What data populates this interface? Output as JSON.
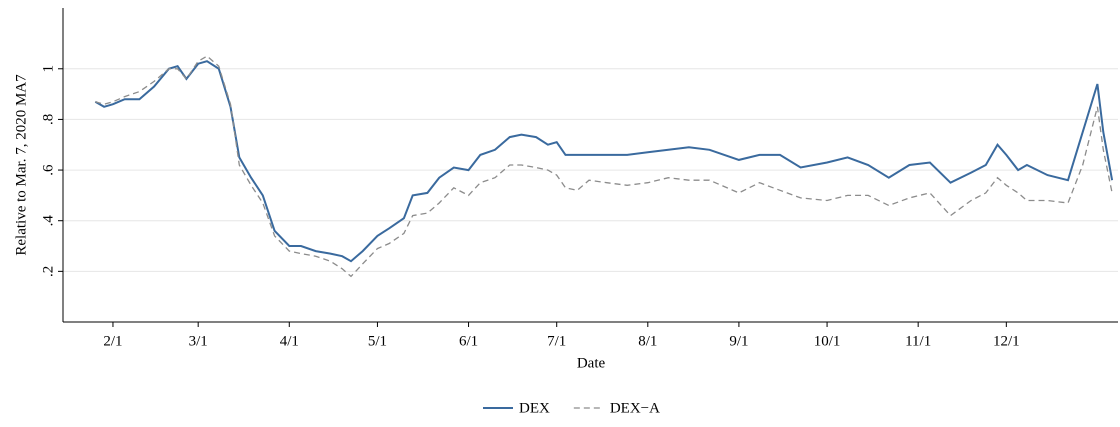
{
  "chart_data": {
    "type": "line",
    "x_label": "Date",
    "y_label": "Relative to Mar. 7, 2020 MA7",
    "x": [
      "1/26",
      "1/29",
      "2/1",
      "2/5",
      "2/10",
      "2/15",
      "2/20",
      "2/23",
      "2/26",
      "3/1",
      "3/4",
      "3/8",
      "3/12",
      "3/15",
      "3/19",
      "3/23",
      "3/27",
      "4/1",
      "4/5",
      "4/10",
      "4/15",
      "4/19",
      "4/22",
      "4/26",
      "5/1",
      "5/5",
      "5/10",
      "5/13",
      "5/18",
      "5/22",
      "5/27",
      "6/1",
      "6/5",
      "6/10",
      "6/15",
      "6/19",
      "6/24",
      "6/28",
      "7/1",
      "7/4",
      "7/8",
      "7/12",
      "7/18",
      "7/25",
      "8/1",
      "8/8",
      "8/15",
      "8/22",
      "9/1",
      "9/8",
      "9/15",
      "9/22",
      "10/1",
      "10/8",
      "10/15",
      "10/22",
      "10/29",
      "11/5",
      "11/12",
      "11/19",
      "11/24",
      "11/28",
      "12/1",
      "12/5",
      "12/8",
      "12/15",
      "12/22",
      "12/27",
      "1/1",
      "1/3",
      "1/6"
    ],
    "series": [
      {
        "name": "DEX",
        "color": "#3a6a9e",
        "dash": false,
        "values": [
          0.87,
          0.85,
          0.86,
          0.88,
          0.88,
          0.93,
          1.0,
          1.01,
          0.96,
          1.02,
          1.03,
          1.0,
          0.85,
          0.65,
          0.57,
          0.5,
          0.36,
          0.3,
          0.3,
          0.28,
          0.27,
          0.26,
          0.24,
          0.28,
          0.34,
          0.37,
          0.41,
          0.5,
          0.51,
          0.57,
          0.61,
          0.6,
          0.66,
          0.68,
          0.73,
          0.74,
          0.73,
          0.7,
          0.71,
          0.66,
          0.66,
          0.66,
          0.66,
          0.66,
          0.67,
          0.68,
          0.69,
          0.68,
          0.64,
          0.66,
          0.66,
          0.61,
          0.63,
          0.65,
          0.62,
          0.57,
          0.62,
          0.63,
          0.55,
          0.59,
          0.62,
          0.7,
          0.66,
          0.6,
          0.62,
          0.58,
          0.56,
          0.75,
          0.94,
          0.75,
          0.56
        ]
      },
      {
        "name": "DEX−A",
        "color": "#8c8c8c",
        "dash": true,
        "values": [
          0.87,
          0.86,
          0.87,
          0.89,
          0.91,
          0.95,
          1.0,
          1.0,
          0.96,
          1.03,
          1.05,
          1.01,
          0.86,
          0.62,
          0.54,
          0.47,
          0.34,
          0.28,
          0.27,
          0.26,
          0.24,
          0.21,
          0.18,
          0.23,
          0.29,
          0.31,
          0.35,
          0.42,
          0.43,
          0.47,
          0.53,
          0.5,
          0.55,
          0.57,
          0.62,
          0.62,
          0.61,
          0.6,
          0.58,
          0.53,
          0.52,
          0.56,
          0.55,
          0.54,
          0.55,
          0.57,
          0.56,
          0.56,
          0.51,
          0.55,
          0.52,
          0.49,
          0.48,
          0.5,
          0.5,
          0.46,
          0.49,
          0.51,
          0.42,
          0.48,
          0.51,
          0.57,
          0.54,
          0.51,
          0.48,
          0.48,
          0.47,
          0.62,
          0.85,
          0.68,
          0.51
        ]
      }
    ],
    "xlim": [
      "1/15",
      "1/8"
    ],
    "xticks": [
      "2/1",
      "3/1",
      "4/1",
      "5/1",
      "6/1",
      "7/1",
      "8/1",
      "9/1",
      "10/1",
      "11/1",
      "12/1"
    ],
    "ylim": [
      0,
      1.24
    ],
    "yticks": [
      {
        "value": 0.2,
        "label": ".2"
      },
      {
        "value": 0.4,
        "label": ".4"
      },
      {
        "value": 0.6,
        "label": ".6"
      },
      {
        "value": 0.8,
        "label": ".8"
      },
      1
    ],
    "grid": true
  }
}
